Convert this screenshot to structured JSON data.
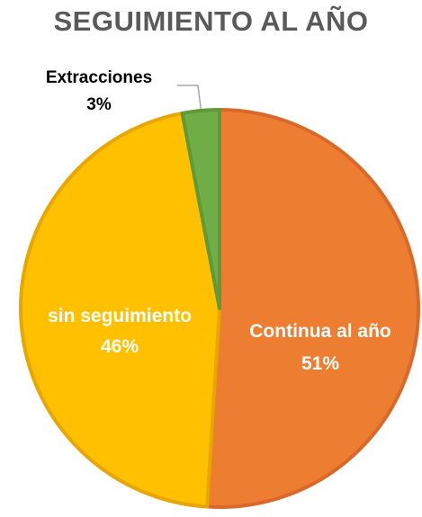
{
  "chart_data": {
    "type": "pie",
    "title": "SEGUIMIENTO AL AÑO",
    "start_angle_deg": 0,
    "direction": "clockwise",
    "slices": [
      {
        "label": "Continua al año",
        "percent_label": "51%",
        "value": 51,
        "color": "#ED7D31",
        "border": "#D9692A",
        "label_color": "#FFFFFF"
      },
      {
        "label": "sin seguimiento",
        "percent_label": "46%",
        "value": 46,
        "color": "#FFC000",
        "border": "#E8A600",
        "label_color": "#FFFFFF"
      },
      {
        "label": "Extracciones",
        "percent_label": "3%",
        "value": 3,
        "color": "#70AD47",
        "border": "#5E9A3A",
        "label_color": "#000000"
      }
    ]
  }
}
